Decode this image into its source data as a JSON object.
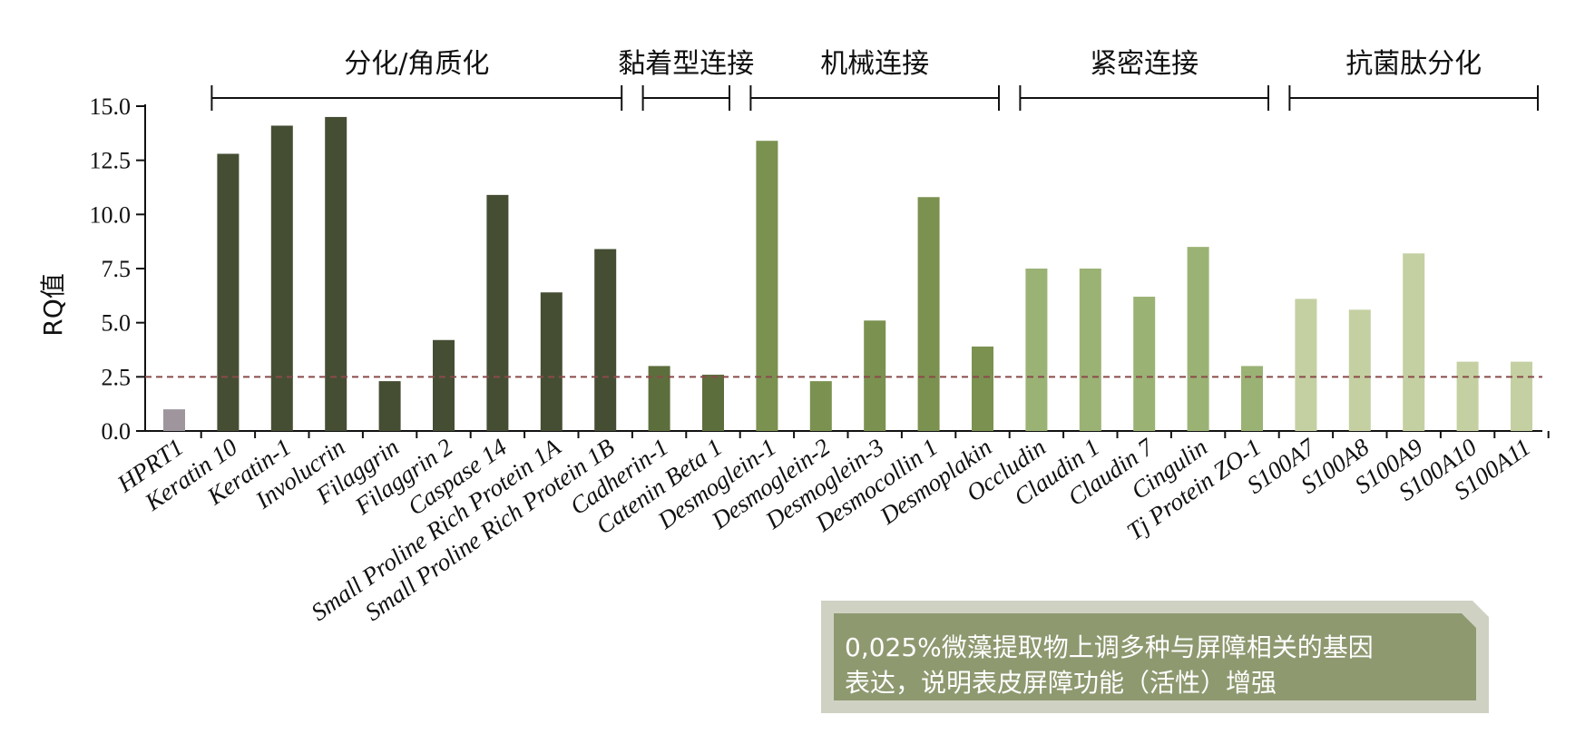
{
  "chart_data": {
    "type": "bar",
    "ylabel": "RQ值",
    "ylim": [
      0,
      15
    ],
    "yticks": [
      "0.0",
      "2.5",
      "5.0",
      "7.5",
      "10.0",
      "12.5",
      "15.0"
    ],
    "threshold": 2.5,
    "categories": [
      "HPRT1",
      "Keratin 10",
      "Keratin-1",
      "Involucrin",
      "Filaggrin",
      "Filaggrin 2",
      "Caspase 14",
      "Small Proline Rich Protein 1A",
      "Small Proline Rich Protein 1B",
      "Cadherin-1",
      "Catenin Beta 1",
      "Desmoglein-1",
      "Desmoglein-2",
      "Desmoglein-3",
      "Desmocollin 1",
      "Desmoplakin",
      "Occludin",
      "Claudin 1",
      "Claudin 7",
      "Cingulin",
      "Tj Protein ZO-1",
      "S100A7",
      "S100A8",
      "S100A9",
      "S100A10",
      "S100A11"
    ],
    "values": [
      1.0,
      12.8,
      14.1,
      14.5,
      2.3,
      4.2,
      10.9,
      6.4,
      8.4,
      3.0,
      2.6,
      13.4,
      2.3,
      5.1,
      10.8,
      3.9,
      7.5,
      7.5,
      6.2,
      8.5,
      3.0,
      6.1,
      5.6,
      8.2,
      3.2,
      3.2
    ],
    "groups": [
      {
        "name": "分化/角质化",
        "start": 1,
        "end": 8,
        "color": "#454e33"
      },
      {
        "name": "黏着型连接",
        "start": 9,
        "end": 10,
        "color": "#5d6e3d"
      },
      {
        "name": "机械连接",
        "start": 11,
        "end": 15,
        "color": "#7b9150"
      },
      {
        "name": "紧密连接",
        "start": 16,
        "end": 20,
        "color": "#9bb275"
      },
      {
        "name": "抗菌肽分化",
        "start": 21,
        "end": 25,
        "color": "#c4d0a2"
      }
    ],
    "control_color": "#9e959d",
    "threshold_color": "#8b4a4a"
  },
  "note": {
    "line1": "0,025%微藻提取物上调多种与屏障相关的基因",
    "line2": "表达，说明表皮屏障功能（活性）增强"
  }
}
